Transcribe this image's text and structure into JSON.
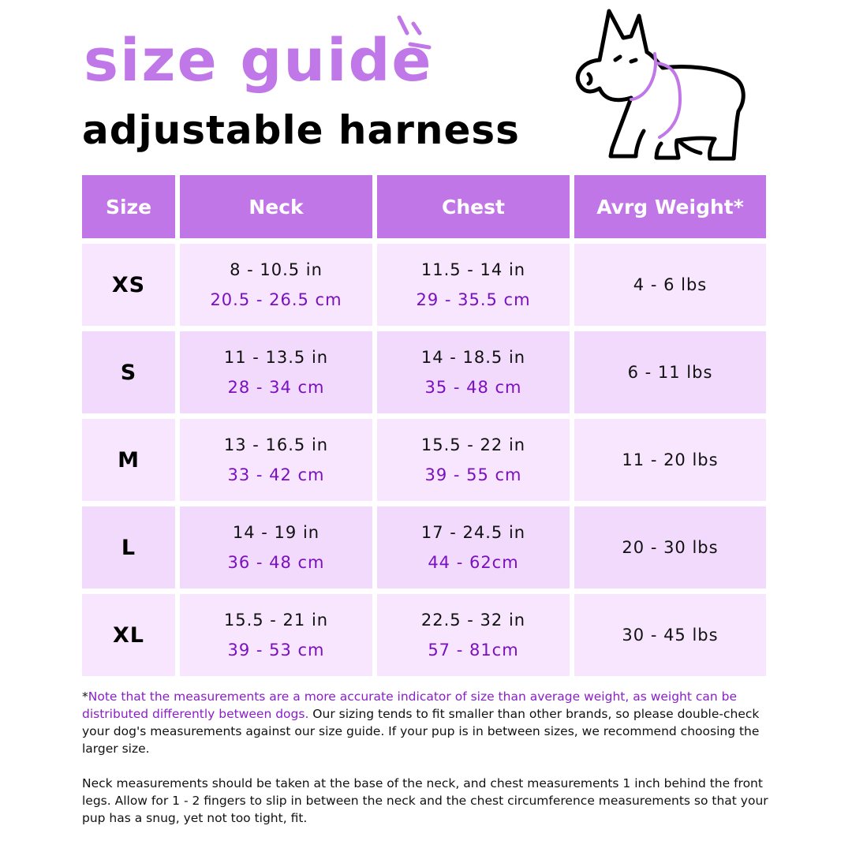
{
  "title": "size guide",
  "subtitle": "adjustable harness",
  "colors": {
    "accent": "#c077e8",
    "header_bg": "#c076e6",
    "row_light": "#f7e6fd",
    "row_dark": "#f1dafc",
    "cm_text": "#7a10bf"
  },
  "table": {
    "headers": [
      "Size",
      "Neck",
      "Chest",
      "Avrg Weight*"
    ],
    "rows": [
      {
        "size": "XS",
        "neck_in": "8 - 10.5 in",
        "neck_cm": "20.5 - 26.5 cm",
        "chest_in": "11.5 - 14 in",
        "chest_cm": "29 - 35.5 cm",
        "weight": "4 - 6 lbs"
      },
      {
        "size": "S",
        "neck_in": "11 - 13.5 in",
        "neck_cm": "28 - 34 cm",
        "chest_in": "14 - 18.5 in",
        "chest_cm": "35 - 48 cm",
        "weight": "6 - 11 lbs"
      },
      {
        "size": "M",
        "neck_in": "13 - 16.5 in",
        "neck_cm": "33 - 42 cm",
        "chest_in": "15.5 - 22 in",
        "chest_cm": "39 - 55 cm",
        "weight": "11 - 20 lbs"
      },
      {
        "size": "L",
        "neck_in": "14 - 19 in",
        "neck_cm": "36 - 48 cm",
        "chest_in": "17 - 24.5 in",
        "chest_cm": "44 - 62cm",
        "weight": "20 - 30 lbs"
      },
      {
        "size": "XL",
        "neck_in": "15.5 - 21 in",
        "neck_cm": "39 - 53 cm",
        "chest_in": "22.5 - 32 in",
        "chest_cm": "57 - 81cm",
        "weight": "30 - 45 lbs"
      }
    ]
  },
  "notes": {
    "asterisk": "*",
    "highlight": "Note that the measurements are a more accurate indicator of size than average weight, as weight can be distributed differently between dogs.",
    "para1_rest": " Our sizing tends to fit smaller than other brands, so please double-check your dog's measurements against our size guide. If your pup is in between sizes, we recommend choosing the larger size.",
    "para2": "Neck measurements should be taken at the base of the neck, and chest measurements 1 inch behind the front legs. Allow for 1 - 2 fingers to slip in between the neck and the chest circumference measurements so that your pup has a snug, yet not too tight, fit."
  }
}
